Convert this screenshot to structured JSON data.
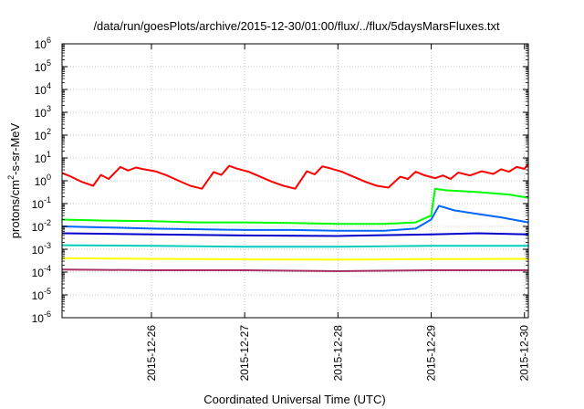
{
  "chart_data": {
    "type": "line",
    "title": "/data/run/goesPlots/archive/2015-12-30/01:00/flux/../flux/5daysMarsFluxes.txt",
    "xlabel": "Coordinated Universal Time (UTC)",
    "ylabel": "protons/cm²-s-sr-MeV",
    "ylabel_parts": {
      "pre": "protons/cm",
      "sup": "2",
      "post": "-s-sr-MeV"
    },
    "yscale": "log",
    "ylim_exp": [
      -6,
      6
    ],
    "ytick_base": "10",
    "yticks_exp": [
      "-6",
      "-5",
      "-4",
      "-3",
      "-2",
      "-1",
      "0",
      "1",
      "2",
      "3",
      "4",
      "5",
      "6"
    ],
    "xlim": [
      "2015-12-25 01:00",
      "2015-12-30 01:00"
    ],
    "xticks": [
      {
        "date": "2015-12-26 00:00",
        "label": "2015-12-26"
      },
      {
        "date": "2015-12-27 00:00",
        "label": "2015-12-27"
      },
      {
        "date": "2015-12-28 00:00",
        "label": "2015-12-28"
      },
      {
        "date": "2015-12-29 00:00",
        "label": "2015-12-29"
      },
      {
        "date": "2015-12-30 00:00",
        "label": "2015-12-30"
      }
    ],
    "grid": true,
    "series": [
      {
        "color": "#ff0000",
        "x": [
          "2015-12-25 01:00",
          "2015-12-25 03:00",
          "2015-12-25 06:00",
          "2015-12-25 09:00",
          "2015-12-25 11:00",
          "2015-12-25 13:00",
          "2015-12-25 16:00",
          "2015-12-25 18:00",
          "2015-12-25 20:00",
          "2015-12-25 22:00",
          "2015-12-26 01:00",
          "2015-12-26 04:00",
          "2015-12-26 07:00",
          "2015-12-26 10:00",
          "2015-12-26 13:00",
          "2015-12-26 16:00",
          "2015-12-26 18:00",
          "2015-12-26 20:00",
          "2015-12-26 22:00",
          "2015-12-27 01:00",
          "2015-12-27 04:00",
          "2015-12-27 07:00",
          "2015-12-27 10:00",
          "2015-12-27 13:00",
          "2015-12-27 16:00",
          "2015-12-27 18:00",
          "2015-12-27 20:00",
          "2015-12-27 22:00",
          "2015-12-28 01:00",
          "2015-12-28 04:00",
          "2015-12-28 07:00",
          "2015-12-28 10:00",
          "2015-12-28 13:00",
          "2015-12-28 16:00",
          "2015-12-28 18:00",
          "2015-12-28 20:00",
          "2015-12-28 22:00",
          "2015-12-29 01:00",
          "2015-12-29 03:00",
          "2015-12-29 05:00",
          "2015-12-29 07:00",
          "2015-12-29 10:00",
          "2015-12-29 13:00",
          "2015-12-29 16:00",
          "2015-12-29 18:00",
          "2015-12-29 20:00",
          "2015-12-29 22:00",
          "2015-12-30 00:00",
          "2015-12-30 01:00"
        ],
        "y": [
          2.2,
          1.6,
          0.9,
          0.6,
          1.8,
          1.2,
          4.0,
          2.8,
          3.8,
          3.2,
          2.6,
          1.7,
          1.0,
          0.6,
          0.45,
          2.4,
          1.8,
          4.5,
          3.4,
          2.5,
          1.5,
          0.9,
          0.6,
          0.45,
          2.6,
          1.9,
          4.3,
          3.5,
          2.5,
          1.5,
          0.9,
          0.6,
          0.5,
          1.5,
          1.2,
          2.5,
          1.8,
          1.3,
          1.7,
          1.2,
          2.3,
          1.7,
          2.6,
          2.0,
          3.2,
          2.5,
          4.0,
          3.3,
          5.5
        ]
      },
      {
        "color": "#00ff00",
        "x": [
          "2015-12-25 01:00",
          "2015-12-25 12:00",
          "2015-12-26 00:00",
          "2015-12-26 12:00",
          "2015-12-27 00:00",
          "2015-12-27 12:00",
          "2015-12-28 00:00",
          "2015-12-28 12:00",
          "2015-12-28 20:00",
          "2015-12-29 00:00",
          "2015-12-29 01:00",
          "2015-12-29 04:00",
          "2015-12-29 08:00",
          "2015-12-29 12:00",
          "2015-12-29 16:00",
          "2015-12-29 20:00",
          "2015-12-30 01:00"
        ],
        "y": [
          0.02,
          0.018,
          0.017,
          0.015,
          0.015,
          0.014,
          0.013,
          0.013,
          0.015,
          0.03,
          0.45,
          0.38,
          0.35,
          0.32,
          0.28,
          0.25,
          0.18
        ]
      },
      {
        "color": "#0066ff",
        "x": [
          "2015-12-25 01:00",
          "2015-12-25 12:00",
          "2015-12-26 00:00",
          "2015-12-26 12:00",
          "2015-12-27 00:00",
          "2015-12-27 12:00",
          "2015-12-28 00:00",
          "2015-12-28 12:00",
          "2015-12-28 20:00",
          "2015-12-29 00:00",
          "2015-12-29 02:00",
          "2015-12-29 06:00",
          "2015-12-29 12:00",
          "2015-12-29 18:00",
          "2015-12-30 01:00"
        ],
        "y": [
          0.01,
          0.009,
          0.008,
          0.0075,
          0.007,
          0.007,
          0.0065,
          0.0065,
          0.008,
          0.02,
          0.08,
          0.05,
          0.035,
          0.025,
          0.015
        ]
      },
      {
        "color": "#0000cc",
        "x": [
          "2015-12-25 01:00",
          "2015-12-26 00:00",
          "2015-12-27 00:00",
          "2015-12-28 00:00",
          "2015-12-29 00:00",
          "2015-12-29 12:00",
          "2015-12-30 01:00"
        ],
        "y": [
          0.005,
          0.0045,
          0.004,
          0.0038,
          0.0045,
          0.005,
          0.0045
        ]
      },
      {
        "color": "#00ccbb",
        "x": [
          "2015-12-25 01:00",
          "2015-12-26 00:00",
          "2015-12-27 00:00",
          "2015-12-28 00:00",
          "2015-12-29 00:00",
          "2015-12-30 01:00"
        ],
        "y": [
          0.0015,
          0.0014,
          0.0013,
          0.0013,
          0.0014,
          0.0014
        ]
      },
      {
        "color": "#ffff00",
        "x": [
          "2015-12-25 01:00",
          "2015-12-26 00:00",
          "2015-12-27 00:00",
          "2015-12-28 00:00",
          "2015-12-29 00:00",
          "2015-12-30 01:00"
        ],
        "y": [
          0.0004,
          0.00038,
          0.00036,
          0.00035,
          0.00037,
          0.00038
        ]
      },
      {
        "color": "#aa3366",
        "x": [
          "2015-12-25 01:00",
          "2015-12-26 00:00",
          "2015-12-27 00:00",
          "2015-12-28 00:00",
          "2015-12-29 00:00",
          "2015-12-30 01:00"
        ],
        "y": [
          0.00013,
          0.00012,
          0.00012,
          0.00011,
          0.00012,
          0.00012
        ]
      }
    ]
  }
}
